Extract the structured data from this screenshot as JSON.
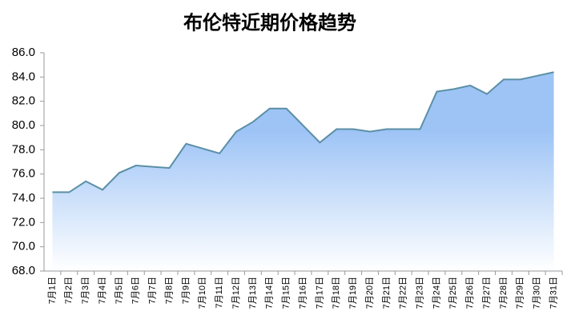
{
  "chart_data": {
    "type": "area",
    "title": "布伦特近期价格趋势",
    "categories": [
      "7月1日",
      "7月2日",
      "7月3日",
      "7月4日",
      "7月5日",
      "7月6日",
      "7月7日",
      "7月8日",
      "7月9日",
      "7月10日",
      "7月11日",
      "7月12日",
      "7月13日",
      "7月14日",
      "7月15日",
      "7月16日",
      "7月17日",
      "7月18日",
      "7月19日",
      "7月20日",
      "7月21日",
      "7月22日",
      "7月23日",
      "7月24日",
      "7月25日",
      "7月26日",
      "7月27日",
      "7月28日",
      "7月29日",
      "7月30日",
      "7月31日"
    ],
    "values": [
      74.5,
      74.5,
      75.4,
      74.7,
      76.1,
      76.7,
      76.6,
      76.5,
      78.5,
      78.1,
      77.7,
      79.5,
      80.3,
      81.4,
      81.4,
      80.0,
      78.6,
      79.7,
      79.7,
      79.5,
      79.7,
      79.7,
      79.7,
      82.8,
      83.0,
      83.3,
      82.6,
      83.8,
      83.8,
      84.1,
      84.4
    ],
    "color": "#5b8fa6",
    "fill_color": "#9ec4f6",
    "ylim": [
      68,
      86
    ],
    "yticks": [
      {
        "value": 68,
        "label": "68.0"
      },
      {
        "value": 70,
        "label": "70.0"
      },
      {
        "value": 72,
        "label": "72.0"
      },
      {
        "value": 74,
        "label": "74.0"
      },
      {
        "value": 76,
        "label": "76.0"
      },
      {
        "value": 78,
        "label": "78.0"
      },
      {
        "value": 80,
        "label": "80.0"
      },
      {
        "value": 82,
        "label": "82.0"
      },
      {
        "value": 84,
        "label": "84.0"
      },
      {
        "value": 86,
        "label": "86.0"
      }
    ]
  }
}
